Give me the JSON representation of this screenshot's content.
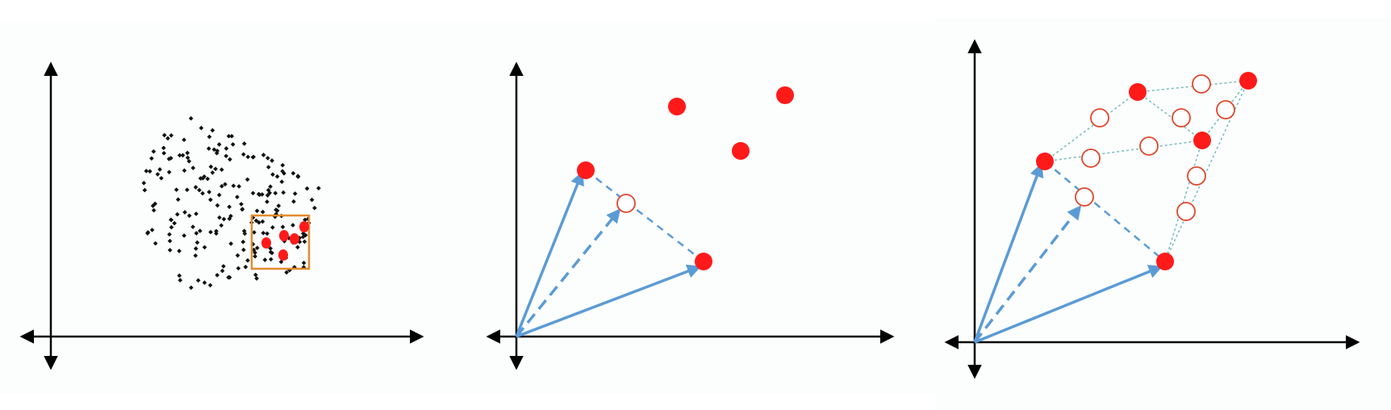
{
  "panels": [
    {
      "id": "scatter",
      "description_free": true,
      "box_color": "#e58a2b",
      "point_color": "#111111",
      "highlight_color": "#ff1a1a"
    },
    {
      "id": "vectors"
    },
    {
      "id": "interpolation"
    }
  ],
  "colors": {
    "axis": "#000000",
    "vector": "#5b9bd5",
    "point": "#ff1a1a",
    "hollow_point": "#e0452a",
    "dotted_link": "#7fbfbf",
    "background": "#ffffff",
    "panel_background": "#fcfefe"
  }
}
